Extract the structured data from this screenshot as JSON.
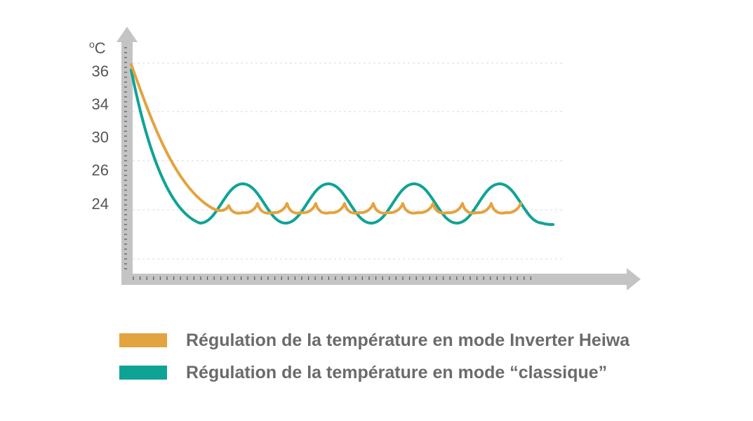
{
  "chart_data": {
    "type": "line",
    "unit": "°C",
    "unit_base": "C",
    "unit_sup": "o",
    "ytick_labels": [
      "36",
      "34",
      "30",
      "26",
      "24"
    ],
    "grid": "dashed-horizontal",
    "legend_position": "bottom",
    "series": [
      {
        "name": "Régulation de la température en mode Inverter Heiwa",
        "color": "#E3A33F",
        "x": [
          0,
          5,
          10,
          15,
          20,
          25,
          30,
          35,
          40,
          45,
          50,
          55,
          60,
          65,
          70,
          75,
          80,
          85,
          90,
          95,
          100
        ],
        "y": [
          36,
          32,
          28.5,
          26,
          24.4,
          23.5,
          23.4,
          24.0,
          23.4,
          24.0,
          23.4,
          24.0,
          23.4,
          24.0,
          23.4,
          24.0,
          23.4,
          24.0,
          23.4,
          24.0,
          23.4
        ]
      },
      {
        "name": "Régulation de la température en mode “classique”",
        "color": "#0FA396",
        "x": [
          0,
          5,
          10,
          15,
          20,
          25,
          30,
          35,
          40,
          45,
          50,
          55,
          60,
          65,
          70,
          75,
          80,
          85,
          90,
          95,
          100
        ],
        "y": [
          36,
          28.5,
          24.5,
          22.8,
          22.8,
          24.5,
          25.8,
          24.5,
          22.8,
          24.5,
          25.8,
          24.5,
          22.8,
          24.5,
          25.8,
          24.5,
          22.8,
          24.5,
          25.8,
          24.5,
          22.8
        ]
      }
    ]
  }
}
